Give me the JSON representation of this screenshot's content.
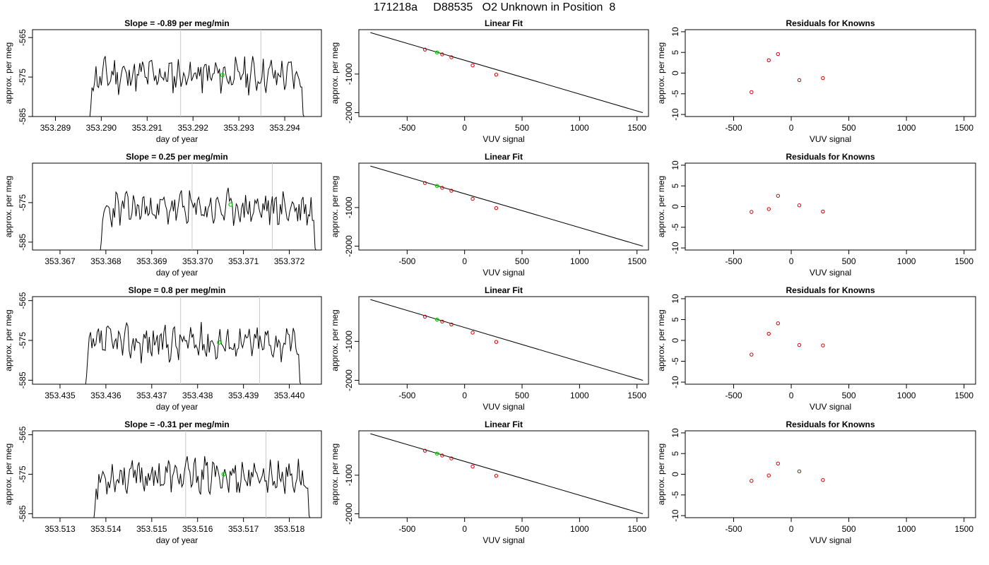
{
  "title": "171218a     D88535   O2 Unknown in Position  8",
  "colors": {
    "trace": "#000000",
    "marker": "#00cc00",
    "points": "#cc0000",
    "refline": "#c8c8c8"
  },
  "chart_data": [
    {
      "type": "line",
      "row": 0,
      "title": "Slope =  -0.89  per meg/min",
      "xlabel": "day of year",
      "ylabel": "approx. per meg",
      "xlim": [
        353.2885,
        353.2948
      ],
      "ylim": [
        -585,
        -563
      ],
      "xticks": [
        "353.289",
        "353.290",
        "353.291",
        "353.292",
        "353.293",
        "353.294"
      ],
      "yticks": [
        "-585",
        "-575",
        "-565"
      ],
      "vlines": [
        353.29173,
        353.29348
      ],
      "trace_start": 353.28975,
      "trace_end": 353.29442,
      "seed": 11,
      "marker": [
        353.29264,
        -574.5
      ]
    },
    {
      "type": "scatter",
      "row": 0,
      "title": "Linear Fit",
      "xlabel": "VUV signal",
      "ylabel": "approx. per meg",
      "xlim": [
        -920,
        1600
      ],
      "ylim": [
        -2100,
        150
      ],
      "xticks": [
        "-500",
        "0",
        "500",
        "1000",
        "1500"
      ],
      "yticks": [
        "-2000",
        "-1000"
      ],
      "points": [
        [
          -345,
          -365
        ],
        [
          -195,
          -490
        ],
        [
          -115,
          -565
        ],
        [
          70,
          -775
        ],
        [
          275,
          -1015
        ]
      ],
      "marker": [
        -240,
        -440
      ],
      "line": [
        [
          -820,
          75
        ],
        [
          1550,
          -2000
        ]
      ]
    },
    {
      "type": "scatter",
      "row": 0,
      "title": "Residuals for Knowns",
      "xlabel": "VUV signal",
      "ylabel": "approx. per meg",
      "xlim": [
        -920,
        1600
      ],
      "ylim": [
        -10.5,
        10.5
      ],
      "xticks": [
        "-500",
        "0",
        "500",
        "1000",
        "1500"
      ],
      "yticks": [
        "-10",
        "-5",
        "0",
        "5",
        "10"
      ],
      "points": [
        [
          -345,
          -4.6
        ],
        [
          -195,
          3.1
        ],
        [
          -115,
          4.6
        ],
        [
          70,
          -1.7
        ],
        [
          275,
          -1.2
        ]
      ]
    },
    {
      "type": "line",
      "row": 1,
      "title": "Slope =  0.25  per meg/min",
      "xlabel": "day of year",
      "ylabel": "approx. per meg",
      "xlim": [
        353.3664,
        353.3727
      ],
      "ylim": [
        -587,
        -565
      ],
      "xticks": [
        "353.367",
        "353.368",
        "353.369",
        "353.370",
        "353.371",
        "353.372"
      ],
      "yticks": [
        "-585",
        "-575"
      ],
      "vlines": [
        353.36988,
        353.37163
      ],
      "trace_start": 353.36788,
      "trace_end": 353.37258,
      "seed": 23,
      "marker": [
        353.37072,
        -575.5
      ]
    },
    {
      "type": "scatter",
      "row": 1,
      "title": "Linear Fit",
      "xlabel": "VUV signal",
      "ylabel": "approx. per meg",
      "xlim": [
        -920,
        1600
      ],
      "ylim": [
        -2100,
        150
      ],
      "xticks": [
        "-500",
        "0",
        "500",
        "1000",
        "1500"
      ],
      "yticks": [
        "-2000",
        "-1000"
      ],
      "points": [
        [
          -345,
          -365
        ],
        [
          -195,
          -490
        ],
        [
          -115,
          -565
        ],
        [
          70,
          -775
        ],
        [
          275,
          -1015
        ]
      ],
      "marker": [
        -240,
        -440
      ],
      "line": [
        [
          -820,
          75
        ],
        [
          1550,
          -2000
        ]
      ]
    },
    {
      "type": "scatter",
      "row": 1,
      "title": "Residuals for Knowns",
      "xlabel": "VUV signal",
      "ylabel": "approx. per meg",
      "xlim": [
        -920,
        1600
      ],
      "ylim": [
        -10.5,
        10.5
      ],
      "xticks": [
        "-500",
        "0",
        "500",
        "1000",
        "1500"
      ],
      "yticks": [
        "-10",
        "-5",
        "0",
        "5",
        "10"
      ],
      "points": [
        [
          -345,
          -1.3
        ],
        [
          -195,
          -0.6
        ],
        [
          -115,
          2.6
        ],
        [
          70,
          0.3
        ],
        [
          275,
          -1.2
        ]
      ]
    },
    {
      "type": "line",
      "row": 2,
      "title": "Slope =  0.8  per meg/min",
      "xlabel": "day of year",
      "ylabel": "approx. per meg",
      "xlim": [
        353.4344,
        353.4407
      ],
      "ylim": [
        -586,
        -564
      ],
      "xticks": [
        "353.435",
        "353.436",
        "353.437",
        "353.438",
        "353.439",
        "353.440"
      ],
      "yticks": [
        "-585",
        "-575",
        "-565"
      ],
      "vlines": [
        353.43763,
        353.43935
      ],
      "trace_start": 353.43556,
      "trace_end": 353.44025,
      "seed": 37,
      "marker": [
        353.43847,
        -575.5
      ]
    },
    {
      "type": "scatter",
      "row": 2,
      "title": "Linear Fit",
      "xlabel": "VUV signal",
      "ylabel": "approx. per meg",
      "xlim": [
        -920,
        1600
      ],
      "ylim": [
        -2100,
        150
      ],
      "xticks": [
        "-500",
        "0",
        "500",
        "1000",
        "1500"
      ],
      "yticks": [
        "-2000",
        "-1000"
      ],
      "points": [
        [
          -345,
          -365
        ],
        [
          -195,
          -490
        ],
        [
          -115,
          -565
        ],
        [
          70,
          -775
        ],
        [
          275,
          -1015
        ]
      ],
      "marker": [
        -240,
        -440
      ],
      "line": [
        [
          -820,
          75
        ],
        [
          1550,
          -2000
        ]
      ]
    },
    {
      "type": "scatter",
      "row": 2,
      "title": "Residuals for Knowns",
      "xlabel": "VUV signal",
      "ylabel": "approx. per meg",
      "xlim": [
        -920,
        1600
      ],
      "ylim": [
        -10.5,
        10.5
      ],
      "xticks": [
        "-500",
        "0",
        "500",
        "1000",
        "1500"
      ],
      "yticks": [
        "-10",
        "-5",
        "0",
        "5",
        "10"
      ],
      "points": [
        [
          -345,
          -3.4
        ],
        [
          -195,
          1.6
        ],
        [
          -115,
          4.1
        ],
        [
          70,
          -1.1
        ],
        [
          275,
          -1.2
        ]
      ]
    },
    {
      "type": "line",
      "row": 3,
      "title": "Slope =  -0.31  per meg/min",
      "xlabel": "day of year",
      "ylabel": "approx. per meg",
      "xlim": [
        353.5124,
        353.5187
      ],
      "ylim": [
        -586,
        -564
      ],
      "xticks": [
        "353.513",
        "353.514",
        "353.515",
        "353.516",
        "353.517",
        "353.518"
      ],
      "yticks": [
        "-585",
        "-575",
        "-565"
      ],
      "vlines": [
        353.51574,
        353.51749
      ],
      "trace_start": 353.51374,
      "trace_end": 353.51845,
      "seed": 53,
      "marker": [
        353.51657,
        -575.0
      ]
    },
    {
      "type": "scatter",
      "row": 3,
      "title": "Linear Fit",
      "xlabel": "VUV signal",
      "ylabel": "approx. per meg",
      "xlim": [
        -920,
        1600
      ],
      "ylim": [
        -2100,
        150
      ],
      "xticks": [
        "-500",
        "0",
        "500",
        "1000",
        "1500"
      ],
      "yticks": [
        "-2000",
        "-1000"
      ],
      "points": [
        [
          -345,
          -365
        ],
        [
          -195,
          -490
        ],
        [
          -115,
          -565
        ],
        [
          70,
          -775
        ],
        [
          275,
          -1015
        ]
      ],
      "marker": [
        -240,
        -440
      ],
      "line": [
        [
          -820,
          75
        ],
        [
          1550,
          -2000
        ]
      ]
    },
    {
      "type": "scatter",
      "row": 3,
      "title": "Residuals for Knowns",
      "xlabel": "VUV signal",
      "ylabel": "approx. per meg",
      "xlim": [
        -920,
        1600
      ],
      "ylim": [
        -10.5,
        10.5
      ],
      "xticks": [
        "-500",
        "0",
        "500",
        "1000",
        "1500"
      ],
      "yticks": [
        "-10",
        "-5",
        "0",
        "5",
        "10"
      ],
      "points": [
        [
          -345,
          -1.6
        ],
        [
          -195,
          -0.3
        ],
        [
          -115,
          2.6
        ],
        [
          70,
          0.7
        ],
        [
          275,
          -1.4
        ]
      ]
    }
  ]
}
